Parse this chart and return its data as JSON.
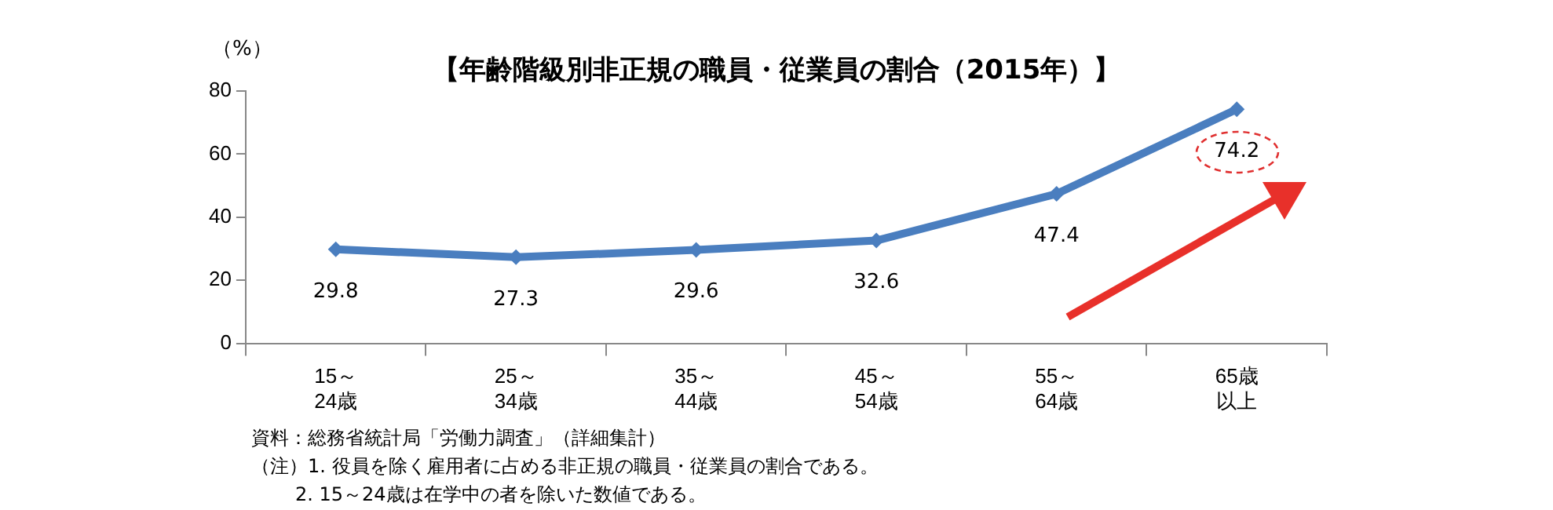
{
  "chart_data": {
    "type": "line",
    "title": "【年齢階級別非正規の職員・従業員の割合（2015年）】",
    "ylabel": "（%）",
    "categories": [
      "15～24歳",
      "25～34歳",
      "35～44歳",
      "45～54歳",
      "55～64歳",
      "65歳以上"
    ],
    "series": [
      {
        "color": "#4a7ebf",
        "values": [
          29.8,
          27.3,
          29.6,
          32.6,
          47.4,
          74.2
        ]
      }
    ],
    "ylim": [
      0,
      80
    ],
    "yticks": [
      0,
      20,
      40,
      60,
      80
    ],
    "grid": false,
    "legend": false,
    "marker": "diamond",
    "line_style": "solid",
    "data_labels": true,
    "annotations": [
      "資料：総務省統計局「労働力調査」（詳細集計）",
      "（注）1. 役員を除く雇用者に占める非正規の職員・従業員の割合である。",
      "2. 15～24歳は在学中の者を除いた数値である。"
    ]
  }
}
